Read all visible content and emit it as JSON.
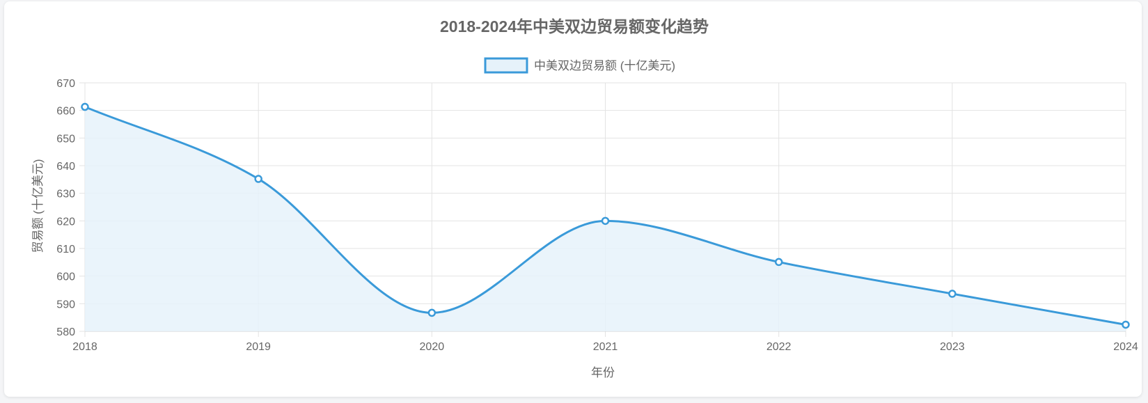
{
  "chart_data": {
    "type": "line",
    "title": "2018-2024年中美双边贸易额变化趋势",
    "xlabel": "年份",
    "ylabel": "贸易额 (十亿美元)",
    "categories": [
      "2018",
      "2019",
      "2020",
      "2021",
      "2022",
      "2023",
      "2024"
    ],
    "series": [
      {
        "name": "中美双边贸易额 (十亿美元)",
        "values": [
          661.3,
          635.2,
          586.7,
          620.0,
          605.1,
          593.6,
          582.4
        ]
      }
    ],
    "ylim": [
      580,
      670
    ],
    "yticks": [
      "670",
      "660",
      "650",
      "640",
      "630",
      "620",
      "610",
      "600",
      "590",
      "580"
    ],
    "grid": true,
    "legend_position": "top",
    "fill": true,
    "smooth": true
  },
  "colors": {
    "line": "#3a9ad9",
    "fill": "#e6f2fa",
    "grid": "#e3e3e3",
    "text": "#666666"
  }
}
